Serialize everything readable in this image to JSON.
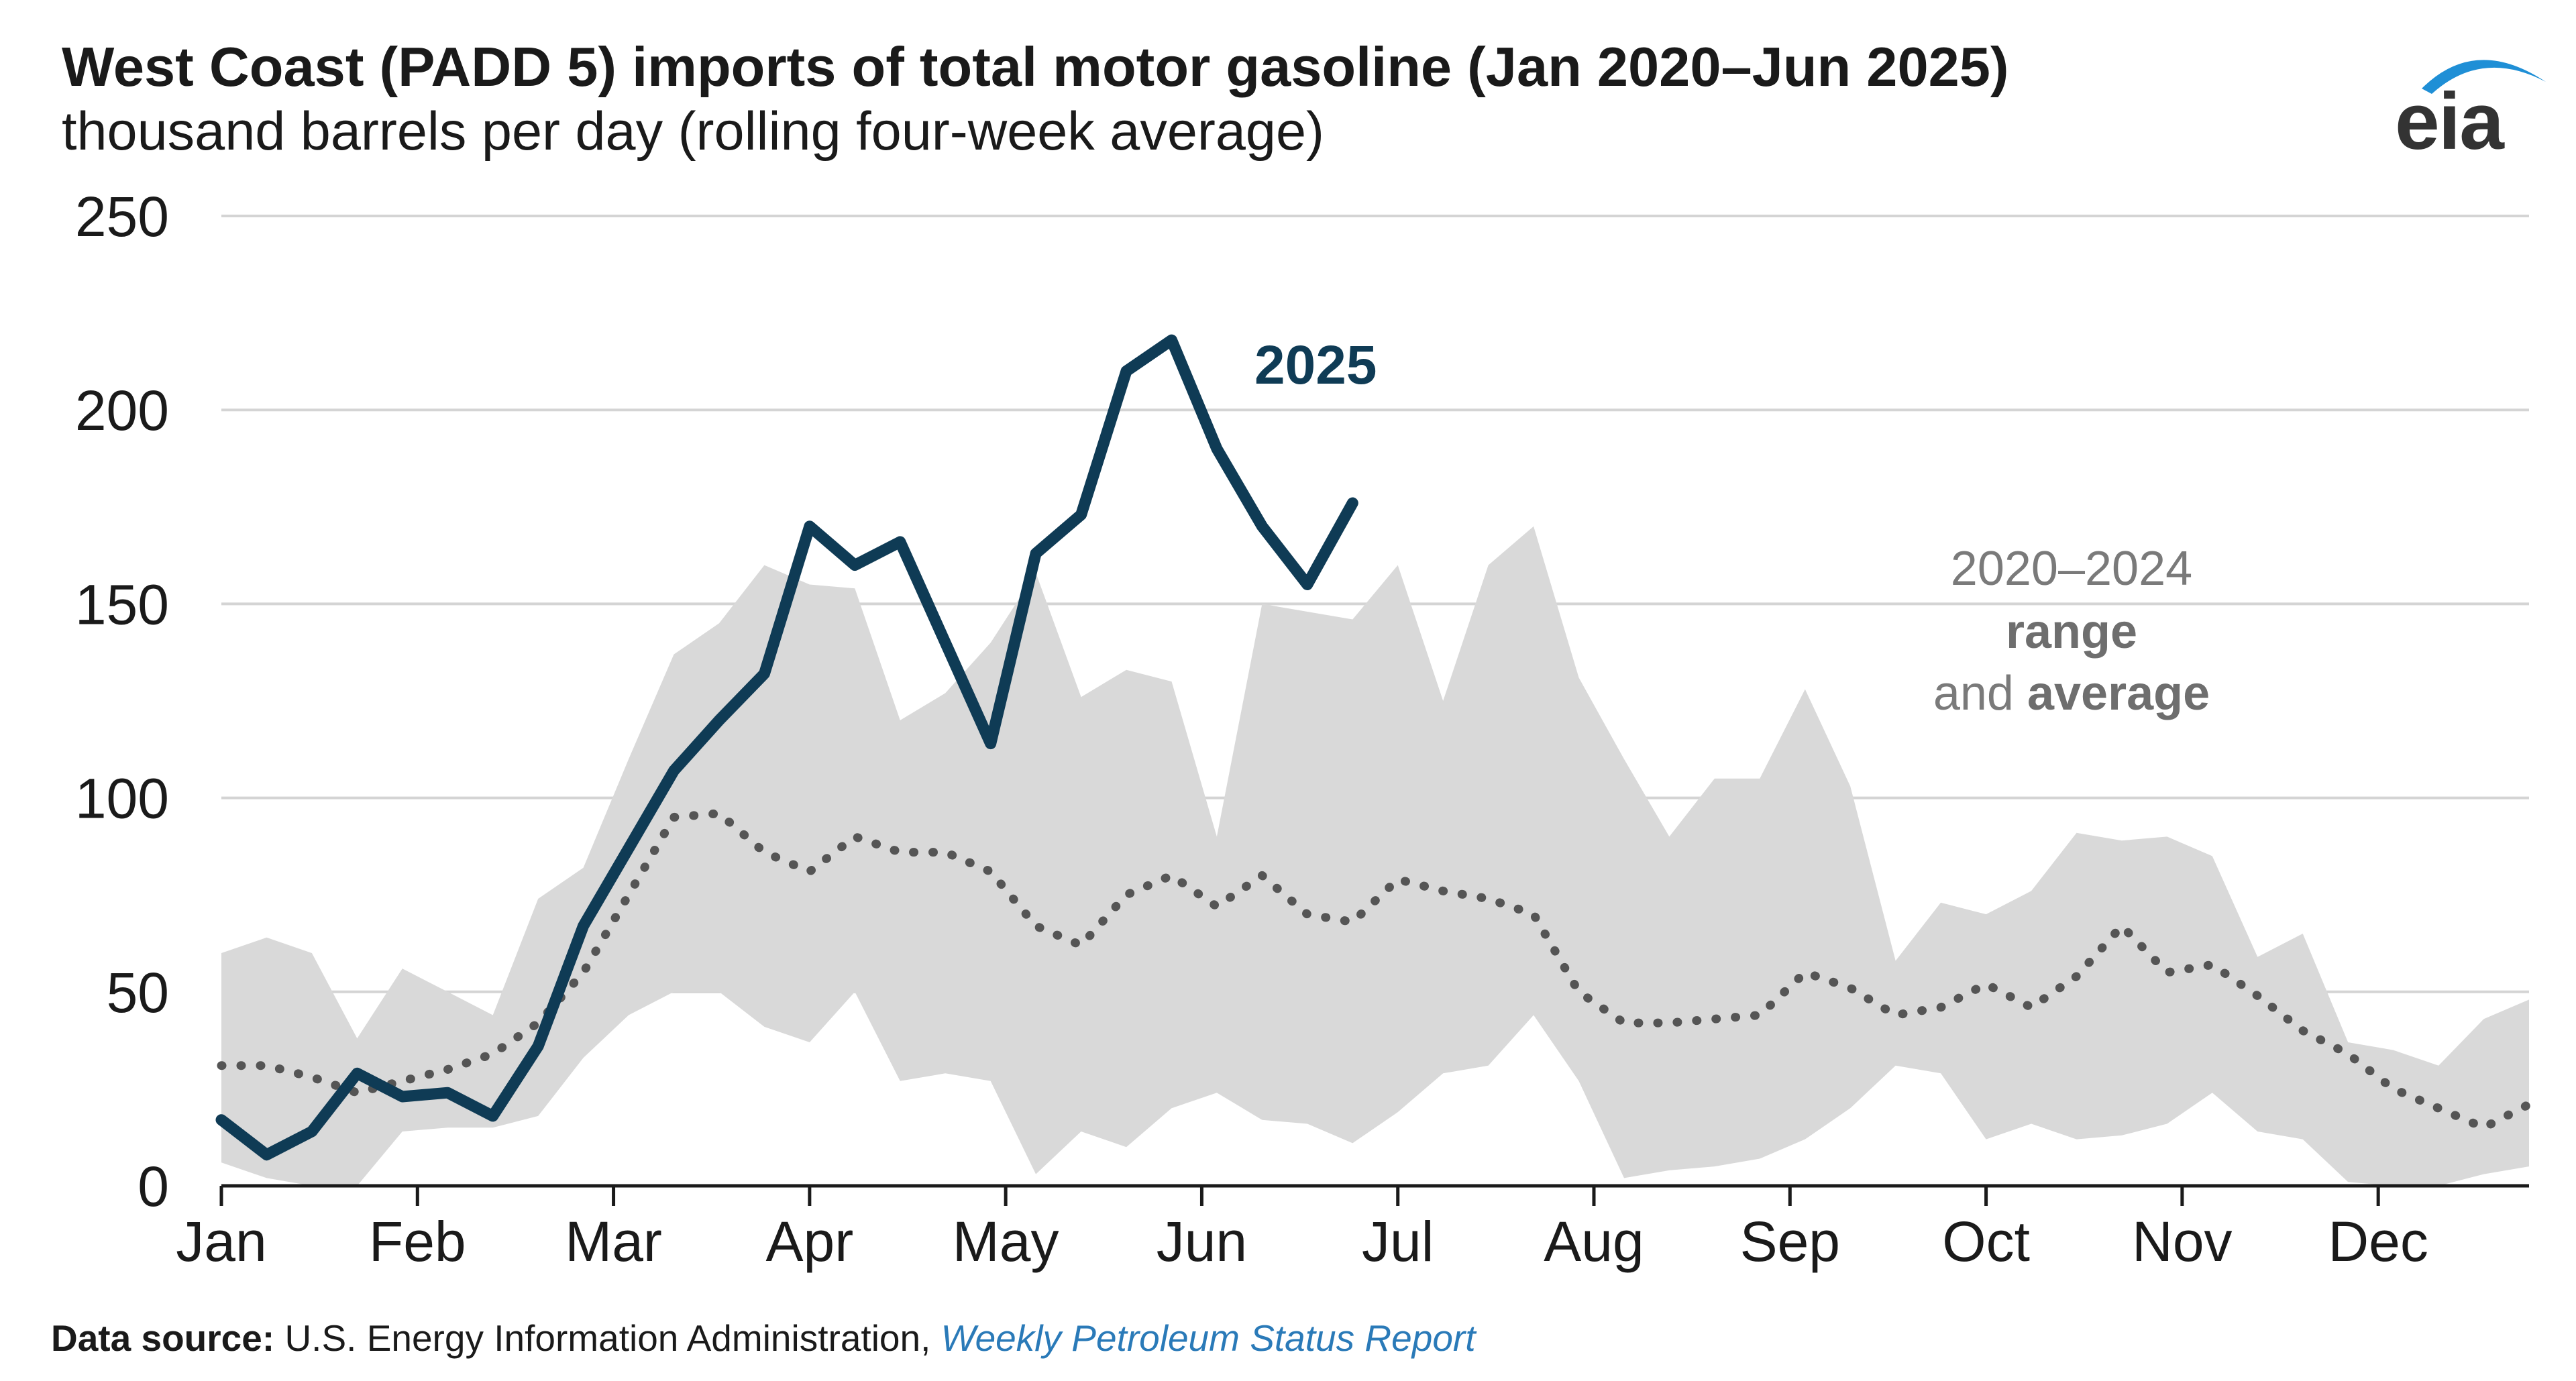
{
  "header": {
    "title": "West Coast (PADD 5) imports of total motor gasoline (Jan 2020–Jun 2025)",
    "subtitle": "thousand barrels per day (rolling four-week average)"
  },
  "logo": {
    "text": "eia",
    "icon": "eia-swoosh-icon"
  },
  "footer": {
    "source_label": "Data source:",
    "source_text": " U.S. Energy Information Administration, ",
    "source_link": "Weekly Petroleum Status Report"
  },
  "chart_data": {
    "type": "line",
    "title": "West Coast (PADD 5) imports of total motor gasoline (Jan 2020–Jun 2025)",
    "ylabel": "thousand barrels per day (rolling four-week average)",
    "xlabel": "",
    "ylim": [
      0,
      250
    ],
    "yticks": [
      0,
      50,
      100,
      150,
      200,
      250
    ],
    "months": [
      "Jan",
      "Feb",
      "Mar",
      "Apr",
      "May",
      "Jun",
      "Jul",
      "Aug",
      "Sep",
      "Oct",
      "Nov",
      "Dec"
    ],
    "grid": "horizontal",
    "x_unit": "week of year",
    "colors": {
      "line_2025": "#0f3b55",
      "range_fill": "#d9d9d9",
      "average": "#555555"
    },
    "annotations": {
      "year_label": "2025",
      "range_line1": "2020–2024",
      "range_line2": "range",
      "range_line3_a": "and ",
      "range_line3_b": "average"
    },
    "series": [
      {
        "name": "2025",
        "style": "solid",
        "x": [
          1,
          2,
          3,
          4,
          5,
          6,
          7,
          8,
          9,
          10,
          11,
          12,
          13,
          14,
          15,
          16,
          17,
          18,
          19,
          20,
          21,
          22,
          23,
          24,
          25,
          26
        ],
        "values": [
          17,
          8,
          14,
          29,
          23,
          24,
          18,
          36,
          67,
          87,
          107,
          120,
          132,
          170,
          160,
          166,
          140,
          114,
          163,
          173,
          210,
          218,
          190,
          170,
          155,
          176
        ]
      },
      {
        "name": "2020–2024 average",
        "style": "dotted",
        "x": [
          1,
          2,
          3,
          4,
          5,
          6,
          7,
          8,
          9,
          10,
          11,
          12,
          13,
          14,
          15,
          16,
          17,
          18,
          19,
          20,
          21,
          22,
          23,
          24,
          25,
          26,
          27,
          28,
          29,
          30,
          31,
          32,
          33,
          34,
          35,
          36,
          37,
          38,
          39,
          40,
          41,
          42,
          43,
          44,
          45,
          46,
          47,
          48,
          49,
          50,
          51,
          52
        ],
        "values": [
          31,
          31,
          28,
          24,
          27,
          30,
          34,
          42,
          55,
          75,
          95,
          96,
          86,
          81,
          90,
          86,
          86,
          81,
          67,
          62,
          75,
          80,
          72,
          80,
          70,
          68,
          79,
          76,
          74,
          70,
          50,
          42,
          42,
          43,
          44,
          55,
          51,
          44,
          46,
          52,
          46,
          54,
          67,
          55,
          57,
          49,
          40,
          34,
          25,
          20,
          15,
          21
        ]
      },
      {
        "name": "2020–2024 range max",
        "style": "band-upper",
        "x": [
          1,
          2,
          3,
          4,
          5,
          6,
          7,
          8,
          9,
          10,
          11,
          12,
          13,
          14,
          15,
          16,
          17,
          18,
          19,
          20,
          21,
          22,
          23,
          24,
          25,
          26,
          27,
          28,
          29,
          30,
          31,
          32,
          33,
          34,
          35,
          36,
          37,
          38,
          39,
          40,
          41,
          42,
          43,
          44,
          45,
          46,
          47,
          48,
          49,
          50,
          51,
          52
        ],
        "values": [
          60,
          64,
          60,
          38,
          56,
          50,
          44,
          74,
          82,
          110,
          137,
          145,
          160,
          155,
          154,
          120,
          127,
          140,
          158,
          126,
          133,
          130,
          90,
          150,
          148,
          146,
          160,
          125,
          160,
          170,
          131,
          110,
          90,
          105,
          105,
          128,
          103,
          58,
          73,
          70,
          76,
          91,
          89,
          90,
          85,
          59,
          65,
          37,
          35,
          31,
          43,
          48
        ]
      },
      {
        "name": "2020–2024 range min",
        "style": "band-lower",
        "x": [
          1,
          2,
          3,
          4,
          5,
          6,
          7,
          8,
          9,
          10,
          11,
          12,
          13,
          14,
          15,
          16,
          17,
          18,
          19,
          20,
          21,
          22,
          23,
          24,
          25,
          26,
          27,
          28,
          29,
          30,
          31,
          32,
          33,
          34,
          35,
          36,
          37,
          38,
          39,
          40,
          41,
          42,
          43,
          44,
          45,
          46,
          47,
          48,
          49,
          50,
          51,
          52
        ],
        "values": [
          6,
          2,
          0,
          0,
          14,
          15,
          15,
          18,
          33,
          44,
          50,
          50,
          41,
          37,
          50,
          27,
          29,
          27,
          3,
          14,
          10,
          20,
          24,
          17,
          16,
          11,
          19,
          29,
          31,
          44,
          27,
          2,
          4,
          5,
          7,
          12,
          20,
          31,
          29,
          12,
          16,
          12,
          13,
          16,
          24,
          14,
          12,
          1,
          0,
          0,
          3,
          5
        ]
      }
    ]
  }
}
